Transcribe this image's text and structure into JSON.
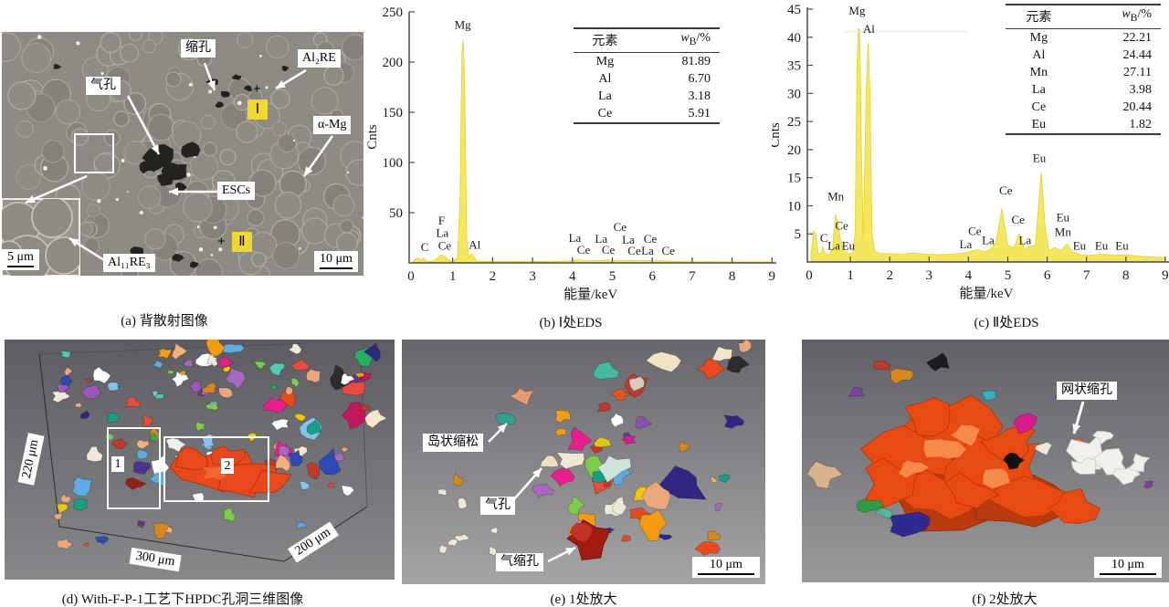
{
  "panels": {
    "a": {
      "caption": "(a) 背散射图像",
      "labels": {
        "shrinkage": "缩孔",
        "al2re": "Al₂RE",
        "gas_pore": "气孔",
        "alpha_mg": "α-Mg",
        "escs": "ESCs",
        "al11re3": "Al₁₁RE₃"
      },
      "markers": {
        "one": "Ⅰ",
        "two": "Ⅱ",
        "plus": "+"
      },
      "scales": {
        "inset": "5 μm",
        "main": "10 μm"
      }
    },
    "d": {
      "caption": "(d) With-F-P-1工艺下HPDC孔洞三维图像",
      "axis_labels": {
        "height": "220 μm",
        "width": "300 μm",
        "depth": "200 μm"
      },
      "region_labels": {
        "one": "1",
        "two": "2"
      }
    },
    "e": {
      "caption": "(e) 1处放大",
      "labels": {
        "island": "岛状缩松",
        "gas": "气孔",
        "gas_shrink": "气缩孔"
      },
      "scale": "10 μm"
    },
    "f": {
      "caption": "(f) 2处放大",
      "labels": {
        "network": "网状缩孔"
      },
      "scale": "10 μm"
    }
  },
  "chart_data": [
    {
      "id": "eds-I",
      "type": "area",
      "caption": "(b) Ⅰ处EDS",
      "xlabel": "能量/keV",
      "ylabel": "Cnts",
      "xlim": [
        0,
        9
      ],
      "ylim": [
        0,
        250
      ],
      "xticks": [
        0,
        1,
        2,
        3,
        4,
        5,
        6,
        7,
        8,
        9
      ],
      "yticks": [
        50,
        100,
        150,
        200,
        250
      ],
      "grid": false,
      "legend": "none",
      "fill_color": "#f5e75d",
      "line_color": "#e3d138",
      "series": [
        {
          "name": "EDS counts at point Ⅰ",
          "points": [
            [
              0,
              1
            ],
            [
              0.07,
              4
            ],
            [
              0.13,
              5
            ],
            [
              0.2,
              2.5
            ],
            [
              0.27,
              5
            ],
            [
              0.33,
              2
            ],
            [
              0.42,
              1.2
            ],
            [
              0.52,
              2
            ],
            [
              0.62,
              5
            ],
            [
              0.7,
              8
            ],
            [
              0.78,
              7
            ],
            [
              0.86,
              4
            ],
            [
              0.95,
              2
            ],
            [
              1.05,
              2.5
            ],
            [
              1.12,
              6
            ],
            [
              1.18,
              60
            ],
            [
              1.23,
              210
            ],
            [
              1.26,
              222
            ],
            [
              1.3,
              180
            ],
            [
              1.35,
              25
            ],
            [
              1.4,
              5
            ],
            [
              1.47,
              9
            ],
            [
              1.53,
              6
            ],
            [
              1.6,
              2
            ],
            [
              1.75,
              1.5
            ],
            [
              2,
              1.5
            ],
            [
              2.3,
              1.2
            ],
            [
              2.6,
              1.5
            ],
            [
              2.9,
              1.2
            ],
            [
              3.2,
              1.5
            ],
            [
              3.5,
              1.3
            ],
            [
              3.8,
              1.8
            ],
            [
              4,
              2.2
            ],
            [
              4.15,
              3
            ],
            [
              4.3,
              2.3
            ],
            [
              4.45,
              2
            ],
            [
              4.6,
              2.6
            ],
            [
              4.75,
              2.2
            ],
            [
              4.88,
              3.2
            ],
            [
              5,
              2.2
            ],
            [
              5.15,
              2.8
            ],
            [
              5.3,
              2.2
            ],
            [
              5.45,
              2.6
            ],
            [
              5.6,
              2.4
            ],
            [
              5.75,
              2
            ],
            [
              5.9,
              2.4
            ],
            [
              6.05,
              2
            ],
            [
              6.2,
              2.2
            ],
            [
              6.4,
              1.8
            ],
            [
              6.6,
              1.4
            ],
            [
              6.9,
              1.2
            ],
            [
              7.2,
              1.1
            ],
            [
              7.5,
              1.1
            ],
            [
              8,
              1
            ],
            [
              8.5,
              1
            ],
            [
              9,
              1
            ]
          ]
        }
      ],
      "peak_labels": [
        [
          "C",
          0.3,
          12
        ],
        [
          "F",
          0.72,
          38
        ],
        [
          "La",
          0.74,
          26
        ],
        [
          "Ce",
          0.8,
          13
        ],
        [
          "Mg",
          1.25,
          233
        ],
        [
          "Al",
          1.55,
          14
        ],
        [
          "La",
          4.06,
          21
        ],
        [
          "Ce",
          4.28,
          9
        ],
        [
          "La",
          4.72,
          20
        ],
        [
          "Ce",
          4.9,
          9
        ],
        [
          "Ce",
          5.19,
          32
        ],
        [
          "La",
          5.4,
          19
        ],
        [
          "Ce",
          5.55,
          8
        ],
        [
          "Ce",
          5.95,
          20
        ],
        [
          "La",
          5.88,
          8
        ],
        [
          "Ce",
          6.4,
          8
        ]
      ],
      "table": {
        "headers": [
          "元素",
          {
            "pre": "w",
            "sub": "B",
            "post": "/%"
          }
        ],
        "rows": [
          [
            "Mg",
            "81.89"
          ],
          [
            "Al",
            "6.70"
          ],
          [
            "La",
            "3.18"
          ],
          [
            "Ce",
            "5.91"
          ]
        ]
      }
    },
    {
      "id": "eds-II",
      "type": "area",
      "caption": "(c) Ⅱ处EDS",
      "xlabel": "能量/keV",
      "ylabel": "Cnts",
      "xlim": [
        0,
        9
      ],
      "ylim": [
        0,
        45
      ],
      "xticks": [
        0,
        1,
        2,
        3,
        4,
        5,
        6,
        7,
        8,
        9
      ],
      "yticks": [
        5,
        10,
        15,
        20,
        25,
        30,
        35,
        40,
        45
      ],
      "grid": false,
      "legend": "none",
      "fill_color": "#f5e75d",
      "line_color": "#e3d138",
      "clip_line": {
        "counts": 41,
        "from_kev": 0.85,
        "to_kev": 4.0
      },
      "series": [
        {
          "name": "EDS counts at point Ⅱ",
          "points": [
            [
              0,
              1.5
            ],
            [
              0.07,
              5.5
            ],
            [
              0.12,
              5
            ],
            [
              0.18,
              1.5
            ],
            [
              0.25,
              1.5
            ],
            [
              0.3,
              2.8
            ],
            [
              0.36,
              1.5
            ],
            [
              0.45,
              1.2
            ],
            [
              0.55,
              2.5
            ],
            [
              0.62,
              8.5
            ],
            [
              0.68,
              7
            ],
            [
              0.75,
              4
            ],
            [
              0.85,
              2
            ],
            [
              0.95,
              1.5
            ],
            [
              1.05,
              1.5
            ],
            [
              1.12,
              5
            ],
            [
              1.17,
              35
            ],
            [
              1.2,
              41.5
            ],
            [
              1.24,
              41.5
            ],
            [
              1.28,
              20
            ],
            [
              1.33,
              4
            ],
            [
              1.4,
              30
            ],
            [
              1.45,
              39
            ],
            [
              1.5,
              30
            ],
            [
              1.55,
              5
            ],
            [
              1.62,
              2
            ],
            [
              1.75,
              1.5
            ],
            [
              2,
              1.5
            ],
            [
              2.3,
              1.4
            ],
            [
              2.6,
              1.6
            ],
            [
              2.9,
              1.4
            ],
            [
              3.2,
              1.3
            ],
            [
              3.6,
              1.4
            ],
            [
              3.9,
              1.6
            ],
            [
              4.1,
              2
            ],
            [
              4.25,
              2.2
            ],
            [
              4.4,
              1.8
            ],
            [
              4.55,
              2.2
            ],
            [
              4.7,
              3.5
            ],
            [
              4.85,
              9.5
            ],
            [
              5,
              3
            ],
            [
              5.15,
              2.5
            ],
            [
              5.3,
              5
            ],
            [
              5.42,
              2.2
            ],
            [
              5.55,
              2.8
            ],
            [
              5.7,
              3
            ],
            [
              5.85,
              16
            ],
            [
              5.95,
              6
            ],
            [
              6.05,
              2
            ],
            [
              6.2,
              2.6
            ],
            [
              6.35,
              2
            ],
            [
              6.5,
              3.2
            ],
            [
              6.65,
              1.8
            ],
            [
              6.85,
              1.3
            ],
            [
              7.1,
              1.2
            ],
            [
              7.4,
              1.4
            ],
            [
              7.7,
              1.2
            ],
            [
              8,
              1.3
            ],
            [
              8.4,
              1
            ],
            [
              8.7,
              0.9
            ],
            [
              9,
              0.8
            ]
          ]
        }
      ],
      "peak_labels": [
        [
          "C",
          0.33,
          3.6
        ],
        [
          "Mn",
          0.63,
          11
        ],
        [
          "Ce",
          0.78,
          5.8
        ],
        [
          "La",
          0.58,
          2.2
        ],
        [
          "Eu",
          0.95,
          2.2
        ],
        [
          "Mg",
          1.17,
          44
        ],
        [
          "Al",
          1.47,
          40.8
        ],
        [
          "La",
          3.93,
          2.4
        ],
        [
          "Ce",
          4.16,
          4.8
        ],
        [
          "La",
          4.5,
          3.2
        ],
        [
          "Ce",
          4.95,
          12
        ],
        [
          "Ce",
          5.26,
          6.8
        ],
        [
          "La",
          5.44,
          3.2
        ],
        [
          "Eu",
          5.8,
          17.8
        ],
        [
          "Eu",
          6.4,
          7.2
        ],
        [
          "Mn",
          6.4,
          4.6
        ],
        [
          "Eu",
          6.82,
          2.2
        ],
        [
          "Eu",
          7.38,
          2.2
        ],
        [
          "Eu",
          7.9,
          2.2
        ]
      ],
      "table": {
        "headers": [
          "元素",
          {
            "pre": "w",
            "sub": "B",
            "post": "/%"
          }
        ],
        "rows": [
          [
            "Mg",
            "22.21"
          ],
          [
            "Al",
            "24.44"
          ],
          [
            "Mn",
            "27.11"
          ],
          [
            "La",
            "3.98"
          ],
          [
            "Ce",
            "20.44"
          ],
          [
            "Eu",
            "1.82"
          ]
        ]
      }
    }
  ]
}
